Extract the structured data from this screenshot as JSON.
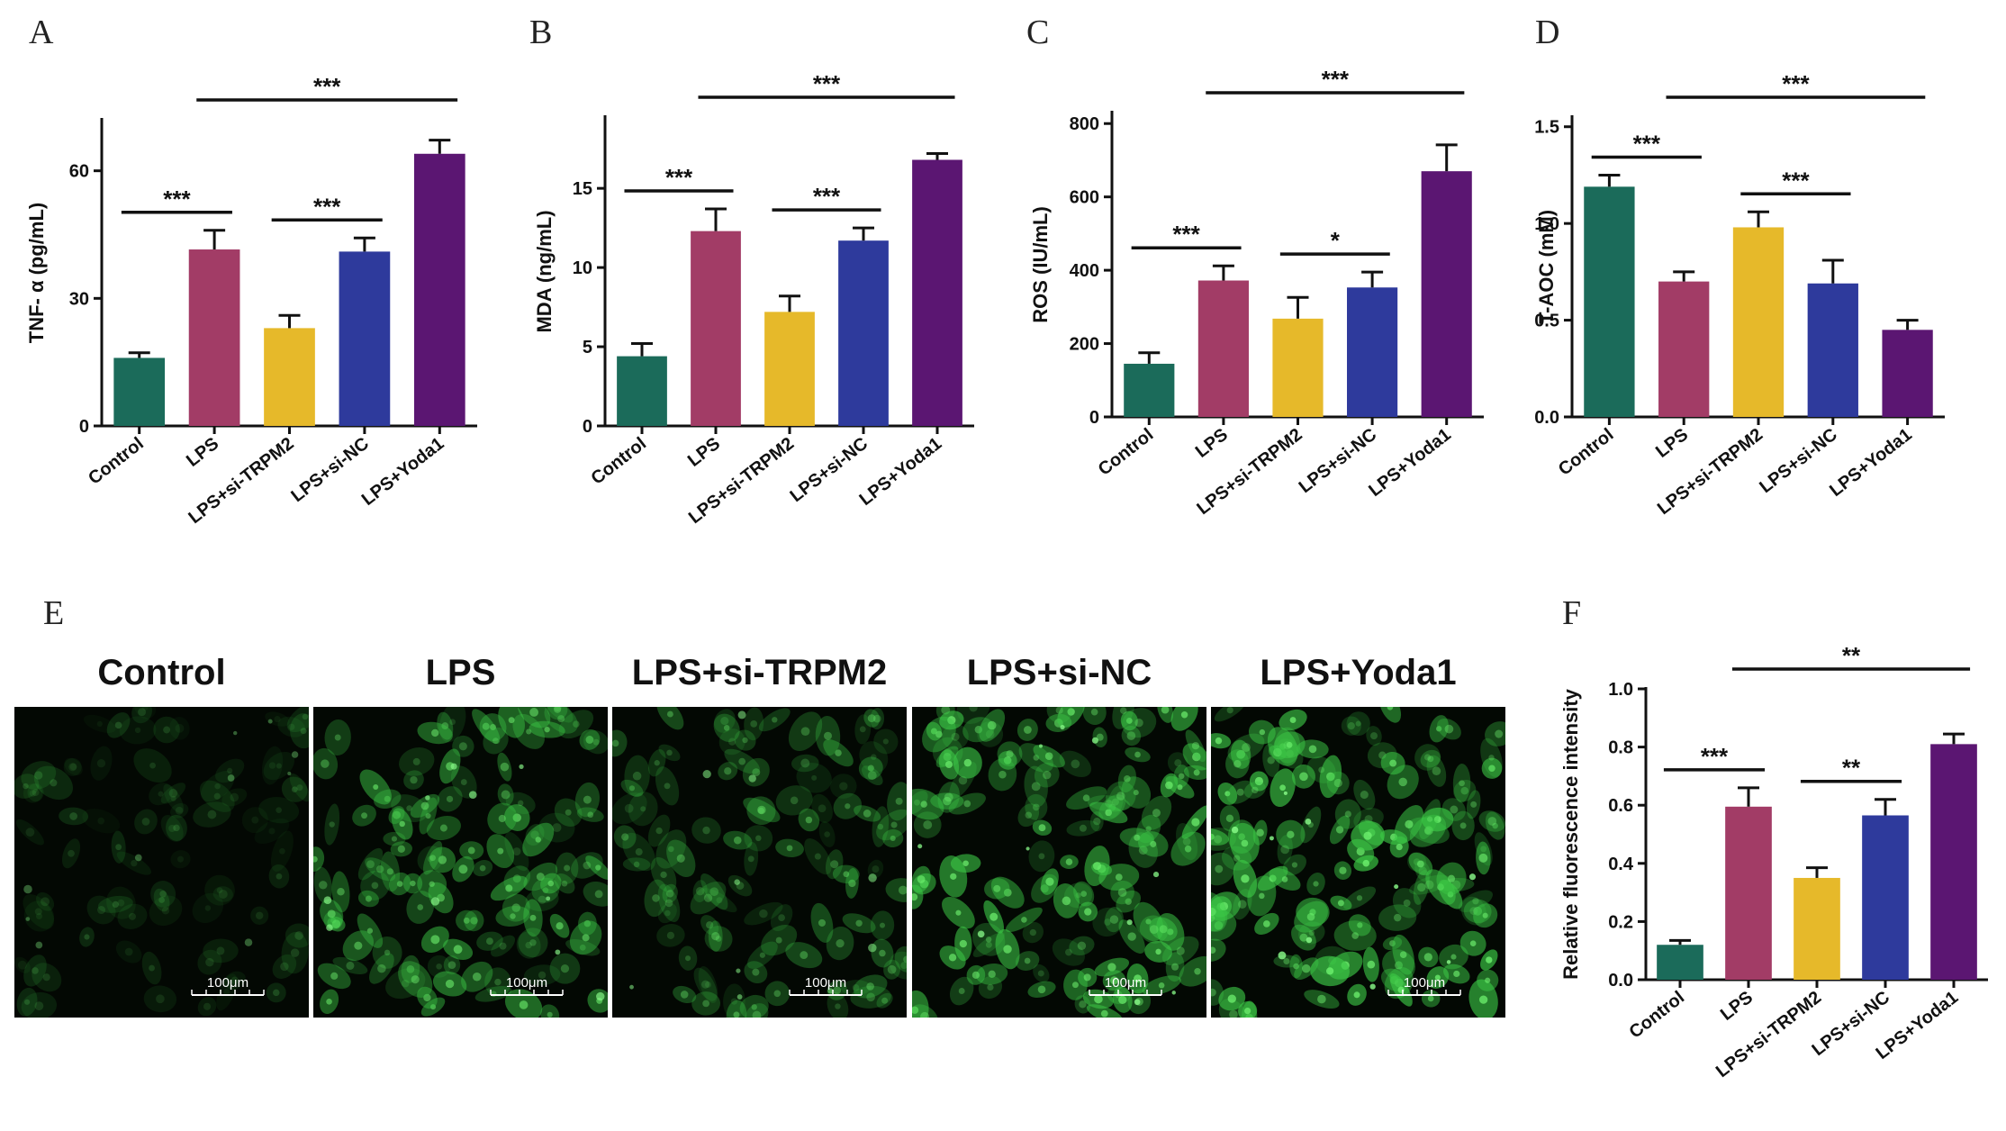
{
  "colors": [
    "#1b6b5a",
    "#a23c66",
    "#e6b92a",
    "#2e3a9c",
    "#5b1672"
  ],
  "panel_labels": {
    "A": "A",
    "B": "B",
    "C": "C",
    "D": "D",
    "E": "E",
    "F": "F"
  },
  "micrographs": {
    "titles": [
      "Control",
      "LPS",
      "LPS+si-TRPM2",
      "LPS+si-NC",
      "LPS+Yoda1"
    ],
    "scale_bar": "100μm",
    "relative_brightness": [
      0.25,
      0.75,
      0.55,
      0.9,
      1.0
    ]
  },
  "chart_data": [
    {
      "id": "A",
      "type": "bar",
      "categories": [
        "Control",
        "LPS",
        "LPS+si-TRPM2",
        "LPS+si-NC",
        "LPS+Yoda1"
      ],
      "values": [
        16,
        41.5,
        23,
        41,
        64
      ],
      "errors": [
        1.2,
        4.5,
        3,
        3.2,
        3.2
      ],
      "ylabel": "TNF- α (pg/mL)",
      "ylim": [
        0,
        72
      ],
      "yticks": [
        0,
        30,
        60
      ],
      "significance": [
        {
          "from": 0,
          "to": 1,
          "label": "***",
          "level": 1
        },
        {
          "from": 2,
          "to": 3,
          "label": "***",
          "level": 1
        },
        {
          "from": 1,
          "to": 4,
          "label": "***",
          "level": 2
        }
      ]
    },
    {
      "id": "B",
      "type": "bar",
      "categories": [
        "Control",
        "LPS",
        "LPS+si-TRPM2",
        "LPS+si-NC",
        "LPS+Yoda1"
      ],
      "values": [
        4.4,
        12.3,
        7.2,
        11.7,
        16.8
      ],
      "errors": [
        0.8,
        1.4,
        1.0,
        0.8,
        0.4
      ],
      "ylabel": "MDA (ng/mL)",
      "ylim": [
        0,
        19.5
      ],
      "yticks": [
        0,
        5,
        10,
        15
      ],
      "significance": [
        {
          "from": 0,
          "to": 1,
          "label": "***",
          "level": 1
        },
        {
          "from": 2,
          "to": 3,
          "label": "***",
          "level": 1
        },
        {
          "from": 1,
          "to": 4,
          "label": "***",
          "level": 2
        }
      ]
    },
    {
      "id": "C",
      "type": "bar",
      "categories": [
        "Control",
        "LPS",
        "LPS+si-TRPM2",
        "LPS+si-NC",
        "LPS+Yoda1"
      ],
      "values": [
        145,
        372,
        268,
        353,
        670
      ],
      "errors": [
        30,
        40,
        58,
        42,
        72
      ],
      "ylabel": "ROS (IU/mL)",
      "ylim": [
        0,
        830
      ],
      "yticks": [
        0,
        200,
        400,
        600,
        800
      ],
      "significance": [
        {
          "from": 0,
          "to": 1,
          "label": "***",
          "level": 1
        },
        {
          "from": 2,
          "to": 3,
          "label": "*",
          "level": 1
        },
        {
          "from": 1,
          "to": 4,
          "label": "***",
          "level": 2
        }
      ]
    },
    {
      "id": "D",
      "type": "bar",
      "categories": [
        "Control",
        "LPS",
        "LPS+si-TRPM2",
        "LPS+si-NC",
        "LPS+Yoda1"
      ],
      "values": [
        1.19,
        0.7,
        0.98,
        0.69,
        0.45
      ],
      "errors": [
        0.06,
        0.05,
        0.08,
        0.12,
        0.05
      ],
      "ylabel": "T-AOC (mM)",
      "ylim": [
        0,
        1.55
      ],
      "yticks": [
        0.0,
        0.5,
        1.0,
        1.5
      ],
      "tick_decimals": 1,
      "significance": [
        {
          "from": 0,
          "to": 1,
          "label": "***",
          "level": 1
        },
        {
          "from": 2,
          "to": 3,
          "label": "***",
          "level": 1
        },
        {
          "from": 1,
          "to": 4,
          "label": "***",
          "level": 2
        }
      ]
    },
    {
      "id": "F",
      "type": "bar",
      "categories": [
        "Control",
        "LPS",
        "LPS+si-TRPM2",
        "LPS+si-NC",
        "LPS+Yoda1"
      ],
      "values": [
        0.12,
        0.595,
        0.35,
        0.565,
        0.81
      ],
      "errors": [
        0.015,
        0.065,
        0.035,
        0.055,
        0.035
      ],
      "ylabel": "Relative fluorescence intensity",
      "ylim": [
        0,
        1.0
      ],
      "yticks": [
        0.0,
        0.2,
        0.4,
        0.6,
        0.8,
        1.0
      ],
      "tick_decimals": 1,
      "significance": [
        {
          "from": 0,
          "to": 1,
          "label": "***",
          "level": 1
        },
        {
          "from": 2,
          "to": 3,
          "label": "**",
          "level": 1
        },
        {
          "from": 1,
          "to": 4,
          "label": "**",
          "level": 2
        }
      ]
    }
  ]
}
